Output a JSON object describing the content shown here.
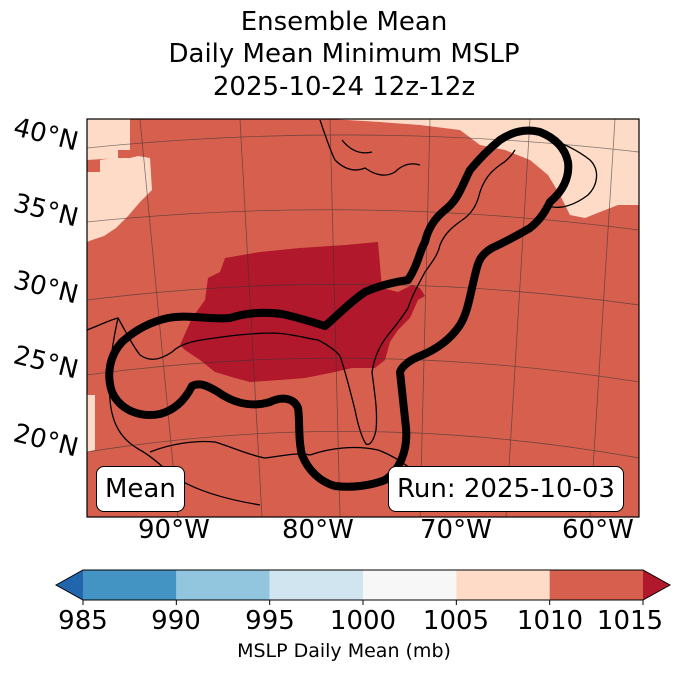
{
  "title": {
    "line1": "Ensemble Mean",
    "line2": "Daily Mean Minimum MSLP",
    "line3": "2025-10-24 12z-12z"
  },
  "map": {
    "lat_labels": [
      "40°N",
      "35°N",
      "30°N",
      "25°N",
      "20°N"
    ],
    "lon_labels": [
      "90°W",
      "80°W",
      "70°W",
      "60°W"
    ],
    "mean_label": "Mean",
    "run_label": "Run: 2025-10-03"
  },
  "colorbar": {
    "ticks": [
      "985",
      "990",
      "995",
      "1000",
      "1005",
      "1010",
      "1015"
    ],
    "label": "MSLP Daily Mean (mb)",
    "colors": {
      "under": "#2166ac",
      "c985_990": "#4393c3",
      "c990_995": "#92c5de",
      "c995_1000": "#d1e5f0",
      "c1000_1005": "#f7f7f7",
      "c1005_1010": "#fddbc7",
      "c1010_1015": "#d6604d",
      "over": "#b2182b"
    }
  }
}
